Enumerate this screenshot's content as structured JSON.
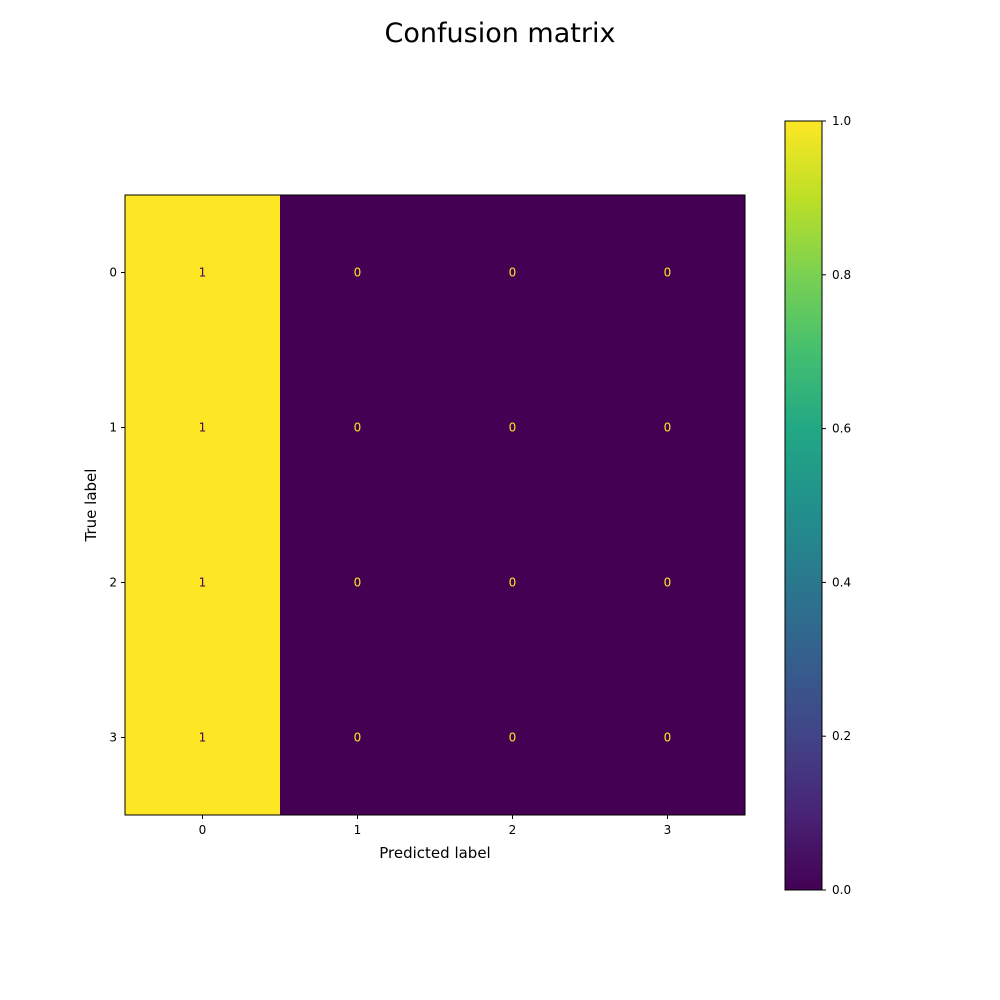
{
  "chart_data": {
    "type": "heatmap",
    "title": "Confusion matrix",
    "xlabel": "Predicted label",
    "ylabel": "True label",
    "x_categories": [
      "0",
      "1",
      "2",
      "3"
    ],
    "y_categories": [
      "0",
      "1",
      "2",
      "3"
    ],
    "values": [
      [
        1,
        0,
        0,
        0
      ],
      [
        1,
        0,
        0,
        0
      ],
      [
        1,
        0,
        0,
        0
      ],
      [
        1,
        0,
        0,
        0
      ]
    ],
    "colormap": "viridis",
    "colorbar": {
      "range": [
        0.0,
        1.0
      ],
      "ticks": [
        "0.0",
        "0.2",
        "0.4",
        "0.6",
        "0.8",
        "1.0"
      ]
    },
    "colors": {
      "high": "#fde725",
      "low": "#440154",
      "label_on_low": "#fde725",
      "label_on_high": "#440154"
    }
  }
}
